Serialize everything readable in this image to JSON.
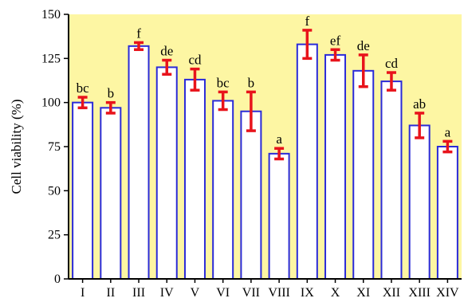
{
  "colors": {
    "background": "#fdf6a3",
    "bar_fill": "#ffffff",
    "bar_stroke": "#2b2bd8",
    "error_bar": "#e8131b",
    "axis": "#000000"
  },
  "chart_data": {
    "type": "bar",
    "title": "",
    "xlabel": "",
    "ylabel": "Cell viability (%)",
    "ylim": [
      0,
      150
    ],
    "yticks": [
      0,
      25,
      50,
      75,
      100,
      125,
      150
    ],
    "grid": false,
    "categories": [
      "I",
      "II",
      "III",
      "IV",
      "V",
      "VI",
      "VII",
      "VIII",
      "IX",
      "X",
      "XI",
      "XII",
      "XIII",
      "XIV"
    ],
    "values": [
      100,
      97,
      132,
      120,
      113,
      101,
      95,
      71,
      133,
      127,
      118,
      112,
      87,
      75
    ],
    "errors": [
      3,
      3,
      2,
      4,
      6,
      5,
      11,
      3,
      8,
      3,
      9,
      5,
      7,
      3
    ],
    "significance_labels": [
      "bc",
      "b",
      "f",
      "de",
      "cd",
      "bc",
      "b",
      "a",
      "f",
      "ef",
      "de",
      "cd",
      "ab",
      "a"
    ]
  }
}
